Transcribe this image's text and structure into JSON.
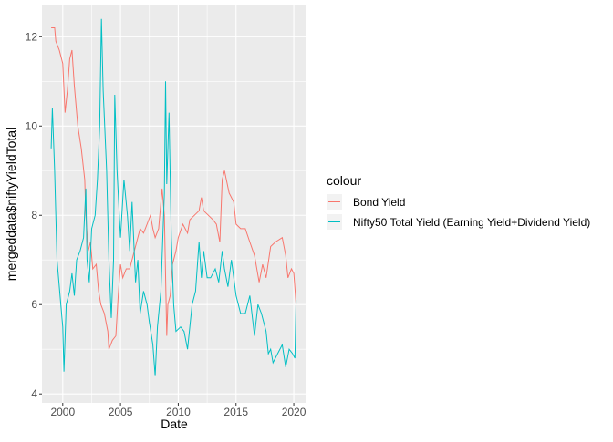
{
  "chart_data": {
    "type": "line",
    "title": "",
    "xlabel": "Date",
    "ylabel": "mergeddata$niftyYieldTotal",
    "xlim": [
      1998.2,
      2021.1
    ],
    "ylim": [
      3.8,
      12.7
    ],
    "x_ticks": [
      2000,
      2005,
      2010,
      2015,
      2020
    ],
    "y_ticks": [
      4,
      6,
      8,
      10,
      12
    ],
    "grid": true,
    "legend": {
      "title": "colour",
      "placement": "right"
    },
    "series": [
      {
        "name": "Bond Yield",
        "color": "#F8766D",
        "points": [
          [
            1999.0,
            12.2
          ],
          [
            1999.3,
            12.2
          ],
          [
            1999.4,
            11.9
          ],
          [
            1999.7,
            11.7
          ],
          [
            2000.0,
            11.4
          ],
          [
            2000.2,
            10.3
          ],
          [
            2000.4,
            10.8
          ],
          [
            2000.6,
            11.5
          ],
          [
            2000.8,
            11.7
          ],
          [
            2001.0,
            10.9
          ],
          [
            2001.3,
            10.0
          ],
          [
            2001.6,
            9.5
          ],
          [
            2001.9,
            8.8
          ],
          [
            2002.0,
            8.0
          ],
          [
            2002.2,
            7.2
          ],
          [
            2002.4,
            7.4
          ],
          [
            2002.6,
            6.8
          ],
          [
            2002.9,
            6.9
          ],
          [
            2003.1,
            6.3
          ],
          [
            2003.3,
            6.0
          ],
          [
            2003.6,
            5.8
          ],
          [
            2003.9,
            5.4
          ],
          [
            2004.0,
            5.0
          ],
          [
            2004.3,
            5.2
          ],
          [
            2004.6,
            5.3
          ],
          [
            2004.8,
            6.2
          ],
          [
            2005.0,
            6.9
          ],
          [
            2005.2,
            6.6
          ],
          [
            2005.5,
            6.8
          ],
          [
            2005.8,
            6.8
          ],
          [
            2006.1,
            7.1
          ],
          [
            2006.4,
            7.4
          ],
          [
            2006.7,
            7.7
          ],
          [
            2007.0,
            7.6
          ],
          [
            2007.3,
            7.8
          ],
          [
            2007.6,
            8.0
          ],
          [
            2007.8,
            7.7
          ],
          [
            2008.0,
            7.5
          ],
          [
            2008.3,
            7.7
          ],
          [
            2008.6,
            8.6
          ],
          [
            2008.8,
            8.0
          ],
          [
            2009.0,
            5.3
          ],
          [
            2009.1,
            6.0
          ],
          [
            2009.3,
            6.2
          ],
          [
            2009.5,
            6.9
          ],
          [
            2009.8,
            7.2
          ],
          [
            2010.0,
            7.5
          ],
          [
            2010.4,
            7.8
          ],
          [
            2010.8,
            7.6
          ],
          [
            2011.0,
            7.9
          ],
          [
            2011.4,
            8.0
          ],
          [
            2011.8,
            8.1
          ],
          [
            2012.0,
            8.4
          ],
          [
            2012.2,
            8.1
          ],
          [
            2012.6,
            8.0
          ],
          [
            2013.0,
            7.9
          ],
          [
            2013.3,
            7.8
          ],
          [
            2013.6,
            7.4
          ],
          [
            2013.8,
            8.8
          ],
          [
            2014.0,
            9.0
          ],
          [
            2014.4,
            8.5
          ],
          [
            2014.8,
            8.3
          ],
          [
            2015.0,
            7.8
          ],
          [
            2015.4,
            7.7
          ],
          [
            2015.8,
            7.7
          ],
          [
            2016.2,
            7.4
          ],
          [
            2016.6,
            7.1
          ],
          [
            2017.0,
            6.5
          ],
          [
            2017.3,
            6.9
          ],
          [
            2017.6,
            6.6
          ],
          [
            2018.0,
            7.3
          ],
          [
            2018.4,
            7.4
          ],
          [
            2019.0,
            7.5
          ],
          [
            2019.3,
            7.1
          ],
          [
            2019.5,
            6.6
          ],
          [
            2019.8,
            6.8
          ],
          [
            2020.0,
            6.7
          ],
          [
            2020.2,
            6.0
          ]
        ]
      },
      {
        "name": "Nifty50 Total Yield (Earning Yield+Dividend Yield)",
        "color": "#00BFC4",
        "points": [
          [
            1999.0,
            9.5
          ],
          [
            1999.1,
            10.4
          ],
          [
            1999.3,
            9.0
          ],
          [
            1999.5,
            7.0
          ],
          [
            1999.7,
            6.4
          ],
          [
            1999.9,
            5.8
          ],
          [
            2000.0,
            5.5
          ],
          [
            2000.1,
            4.5
          ],
          [
            2000.3,
            6.0
          ],
          [
            2000.6,
            6.3
          ],
          [
            2000.8,
            6.7
          ],
          [
            2001.0,
            6.2
          ],
          [
            2001.2,
            7.0
          ],
          [
            2001.5,
            7.2
          ],
          [
            2001.8,
            7.5
          ],
          [
            2002.0,
            8.6
          ],
          [
            2002.1,
            7.0
          ],
          [
            2002.3,
            6.5
          ],
          [
            2002.5,
            7.7
          ],
          [
            2002.8,
            8.0
          ],
          [
            2003.0,
            8.8
          ],
          [
            2003.2,
            10.0
          ],
          [
            2003.35,
            12.4
          ],
          [
            2003.5,
            10.8
          ],
          [
            2003.8,
            9.0
          ],
          [
            2004.0,
            7.0
          ],
          [
            2004.2,
            5.7
          ],
          [
            2004.4,
            7.0
          ],
          [
            2004.5,
            10.7
          ],
          [
            2004.7,
            9.0
          ],
          [
            2005.0,
            7.5
          ],
          [
            2005.3,
            8.8
          ],
          [
            2005.6,
            8.0
          ],
          [
            2005.8,
            7.2
          ],
          [
            2006.0,
            8.3
          ],
          [
            2006.3,
            6.5
          ],
          [
            2006.5,
            7.0
          ],
          [
            2006.7,
            5.8
          ],
          [
            2007.0,
            6.3
          ],
          [
            2007.3,
            6.0
          ],
          [
            2007.5,
            5.6
          ],
          [
            2007.8,
            5.1
          ],
          [
            2008.0,
            4.4
          ],
          [
            2008.2,
            5.5
          ],
          [
            2008.5,
            6.3
          ],
          [
            2008.8,
            8.5
          ],
          [
            2008.9,
            11.0
          ],
          [
            2009.0,
            8.7
          ],
          [
            2009.2,
            10.3
          ],
          [
            2009.4,
            7.5
          ],
          [
            2009.6,
            6.0
          ],
          [
            2009.8,
            5.4
          ],
          [
            2010.2,
            5.5
          ],
          [
            2010.5,
            5.4
          ],
          [
            2010.8,
            5.0
          ],
          [
            2011.2,
            6.0
          ],
          [
            2011.5,
            6.3
          ],
          [
            2011.8,
            7.4
          ],
          [
            2012.0,
            6.6
          ],
          [
            2012.2,
            7.2
          ],
          [
            2012.5,
            6.6
          ],
          [
            2012.8,
            6.6
          ],
          [
            2013.2,
            6.8
          ],
          [
            2013.5,
            6.5
          ],
          [
            2013.8,
            7.2
          ],
          [
            2014.0,
            6.8
          ],
          [
            2014.3,
            6.4
          ],
          [
            2014.6,
            7.0
          ],
          [
            2015.0,
            6.2
          ],
          [
            2015.4,
            5.8
          ],
          [
            2015.8,
            5.8
          ],
          [
            2016.2,
            6.2
          ],
          [
            2016.6,
            5.3
          ],
          [
            2016.9,
            6.0
          ],
          [
            2017.2,
            5.8
          ],
          [
            2017.6,
            5.4
          ],
          [
            2017.8,
            4.9
          ],
          [
            2018.0,
            5.0
          ],
          [
            2018.2,
            4.7
          ],
          [
            2019.0,
            5.1
          ],
          [
            2019.3,
            4.6
          ],
          [
            2019.6,
            5.0
          ],
          [
            2019.9,
            4.9
          ],
          [
            2020.1,
            4.8
          ],
          [
            2020.2,
            6.1
          ]
        ]
      }
    ]
  }
}
